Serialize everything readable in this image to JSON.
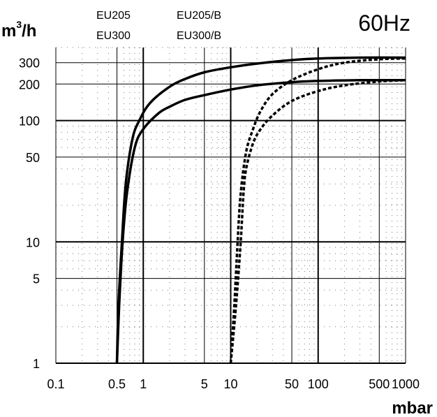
{
  "chart_data": {
    "type": "line",
    "frequency_label": "60Hz",
    "xlabel": "mbar",
    "ylabel": {
      "base": "m",
      "sup": "3",
      "rest": "/h"
    },
    "xscale": "log",
    "yscale": "log",
    "xlim": [
      0.1,
      1000
    ],
    "ylim": [
      1,
      400
    ],
    "grid": true,
    "legend": [
      "EU205",
      "EU205/B",
      "EU300",
      "EU300/B"
    ],
    "xticks": [
      {
        "value": 0.1,
        "label": "0.1"
      },
      {
        "value": 0.5,
        "label": "0.5"
      },
      {
        "value": 1,
        "label": "1"
      },
      {
        "value": 5,
        "label": "5"
      },
      {
        "value": 10,
        "label": "10"
      },
      {
        "value": 50,
        "label": "50"
      },
      {
        "value": 100,
        "label": "100"
      },
      {
        "value": 500,
        "label": "500"
      },
      {
        "value": 1000,
        "label": "1000"
      }
    ],
    "yticks": [
      {
        "value": 1,
        "label": "1"
      },
      {
        "value": 5,
        "label": "5"
      },
      {
        "value": 10,
        "label": "10"
      },
      {
        "value": 50,
        "label": "50"
      },
      {
        "value": 100,
        "label": "100"
      },
      {
        "value": 200,
        "label": "200"
      },
      {
        "value": 300,
        "label": "300"
      }
    ],
    "series": [
      {
        "name": "EU300",
        "style": "solid",
        "points": [
          [
            0.5,
            1
          ],
          [
            0.52,
            3
          ],
          [
            0.57,
            10
          ],
          [
            0.63,
            30
          ],
          [
            0.75,
            70
          ],
          [
            0.9,
            100
          ],
          [
            1.2,
            140
          ],
          [
            2,
            190
          ],
          [
            3,
            220
          ],
          [
            5,
            250
          ],
          [
            10,
            275
          ],
          [
            20,
            295
          ],
          [
            50,
            315
          ],
          [
            100,
            325
          ],
          [
            300,
            330
          ],
          [
            1000,
            330
          ]
        ]
      },
      {
        "name": "EU205",
        "style": "solid",
        "points": [
          [
            0.5,
            1
          ],
          [
            0.53,
            3
          ],
          [
            0.58,
            10
          ],
          [
            0.65,
            25
          ],
          [
            0.8,
            60
          ],
          [
            1,
            85
          ],
          [
            1.5,
            115
          ],
          [
            2,
            130
          ],
          [
            3,
            148
          ],
          [
            5,
            162
          ],
          [
            10,
            180
          ],
          [
            20,
            195
          ],
          [
            50,
            207
          ],
          [
            100,
            212
          ],
          [
            300,
            215
          ],
          [
            1000,
            215
          ]
        ]
      },
      {
        "name": "EU300/B",
        "style": "dashed",
        "points": [
          [
            10,
            1
          ],
          [
            11,
            3
          ],
          [
            12,
            10
          ],
          [
            13,
            25
          ],
          [
            15,
            55
          ],
          [
            18,
            85
          ],
          [
            22,
            120
          ],
          [
            30,
            165
          ],
          [
            50,
            215
          ],
          [
            100,
            265
          ],
          [
            200,
            300
          ],
          [
            500,
            320
          ],
          [
            1000,
            325
          ]
        ]
      },
      {
        "name": "EU205/B",
        "style": "dashed",
        "points": [
          [
            10,
            1
          ],
          [
            11.5,
            3
          ],
          [
            13,
            10
          ],
          [
            14,
            25
          ],
          [
            15,
            40
          ],
          [
            18,
            65
          ],
          [
            22,
            85
          ],
          [
            30,
            110
          ],
          [
            50,
            145
          ],
          [
            100,
            175
          ],
          [
            200,
            195
          ],
          [
            500,
            210
          ],
          [
            1000,
            215
          ]
        ]
      }
    ]
  }
}
